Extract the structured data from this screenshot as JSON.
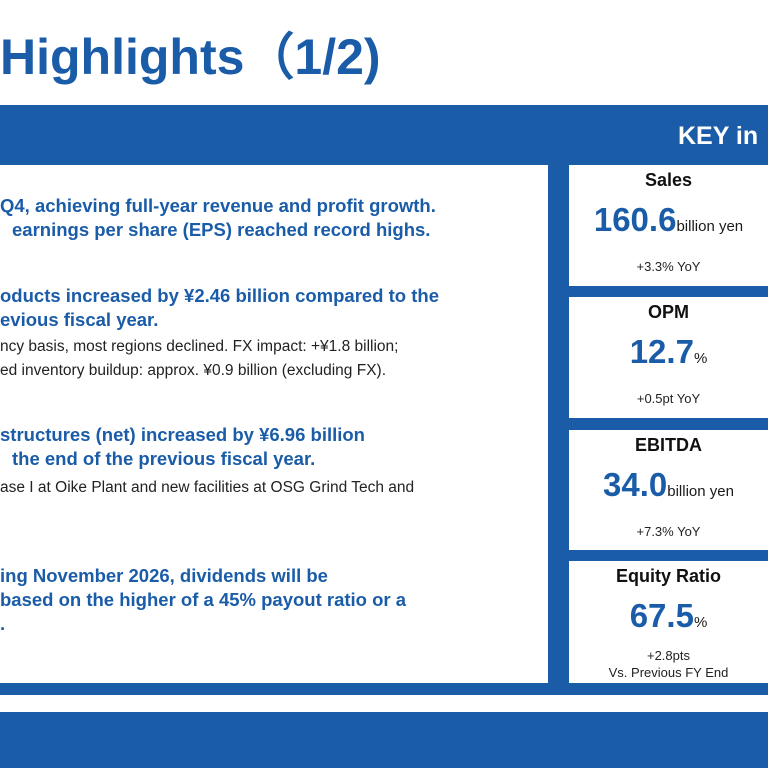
{
  "title": "Highlights（1/2)",
  "key_header": "KEY in",
  "highlights": [
    {
      "bold_lines": [
        " Q4, achieving full-year revenue and profit growth.",
        "earnings per share (EPS) reached record highs."
      ],
      "sub_lines": []
    },
    {
      "bold_lines": [
        "oducts increased by ¥2.46 billion compared to the",
        "evious fiscal year."
      ],
      "sub_lines": [
        "ncy basis, most regions declined. FX impact: +¥1.8 billion;",
        "ed inventory buildup: approx. ¥0.9 billion (excluding FX)."
      ]
    },
    {
      "bold_lines": [
        " structures (net) increased by ¥6.96 billion",
        "the end of the previous fiscal year."
      ],
      "sub_lines": [
        "ase I at Oike Plant and new facilities at OSG Grind Tech and"
      ]
    },
    {
      "bold_lines": [
        "ing November 2026, dividends will be",
        "based on the higher of a 45% payout ratio or a",
        "."
      ],
      "sub_lines": []
    }
  ],
  "kpis": [
    {
      "label": "Sales",
      "value": "160.6",
      "unit": "billion yen",
      "note1": "+3.3% YoY",
      "note2": ""
    },
    {
      "label": "OPM",
      "value": "12.7",
      "unit": "%",
      "note1": "+0.5pt YoY",
      "note2": ""
    },
    {
      "label": "EBITDA",
      "value": "34.0",
      "unit": "billion yen",
      "note1": "+7.3% YoY",
      "note2": ""
    },
    {
      "label": "Equity Ratio",
      "value": "67.5",
      "unit": "%",
      "note1": "+2.8pts",
      "note2": "Vs. Previous FY End"
    }
  ]
}
